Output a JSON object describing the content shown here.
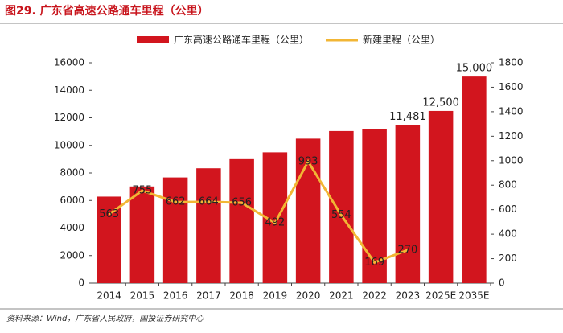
{
  "chart_data": {
    "type": "bar-line",
    "title": "图29. 广东省高速公路通车里程（公里）",
    "source": "资料来源：Wind，广东省人民政府，国投证券研究中心",
    "categories": [
      "2014",
      "2015",
      "2016",
      "2017",
      "2018",
      "2019",
      "2020",
      "2021",
      "2022",
      "2023",
      "2025E",
      "2035E"
    ],
    "series": [
      {
        "name": "广东高速公路通车里程（公里）",
        "color": "#d2151e",
        "axis": "y",
        "values": [
          6280,
          7018,
          7673,
          8338,
          9002,
          9495,
          10488,
          11042,
          11211,
          11481,
          12500,
          15000
        ],
        "value_labels": [
          null,
          null,
          null,
          null,
          null,
          null,
          null,
          null,
          null,
          "11,481",
          "12,500",
          "15,000"
        ]
      },
      {
        "name": "新建里程（公里）",
        "color": "#f2b635",
        "axis": "y2",
        "values": [
          563,
          755,
          662,
          664,
          656,
          492,
          993,
          554,
          169,
          270,
          null,
          null
        ]
      }
    ],
    "ylim": [
      0,
      16000
    ],
    "yticks": [
      0,
      2000,
      4000,
      6000,
      8000,
      10000,
      12000,
      14000,
      16000
    ],
    "y2lim": [
      0,
      1800
    ],
    "y2ticks": [
      0,
      200,
      400,
      600,
      800,
      1000,
      1200,
      1400,
      1600,
      1800
    ],
    "legend": "top"
  }
}
